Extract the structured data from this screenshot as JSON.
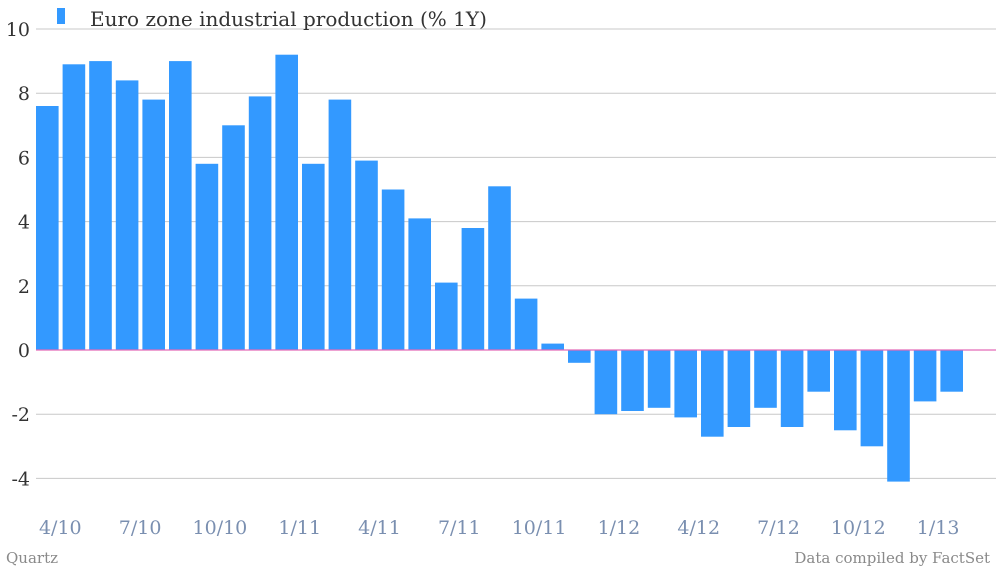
{
  "colors": {
    "bar": "#3399ff",
    "grid": "#c8c8c8",
    "zero_line": "#e36ab8"
  },
  "footer": {
    "left": "Quartz",
    "right": "Data compiled by FactSet"
  },
  "chart_data": {
    "type": "bar",
    "title": "",
    "xlabel": "",
    "ylabel": "",
    "ylim": [
      -5,
      10
    ],
    "yticks": [
      10,
      8,
      6,
      4,
      2,
      0,
      -2,
      -4
    ],
    "grid": true,
    "legend_position": "top-left",
    "x_tick_labels": [
      "4/10",
      "7/10",
      "10/10",
      "1/11",
      "4/11",
      "7/11",
      "10/11",
      "1/12",
      "4/12",
      "7/12",
      "10/12",
      "1/13"
    ],
    "categories": [
      "4/10",
      "5/10",
      "6/10",
      "7/10",
      "8/10",
      "9/10",
      "10/10",
      "11/10",
      "12/10",
      "1/11",
      "2/11",
      "3/11",
      "4/11",
      "5/11",
      "6/11",
      "7/11",
      "8/11",
      "9/11",
      "10/11",
      "11/11",
      "12/11",
      "1/12",
      "2/12",
      "3/12",
      "4/12",
      "5/12",
      "6/12",
      "7/12",
      "8/12",
      "9/12",
      "10/12",
      "11/12",
      "12/12",
      "1/13",
      "2/13"
    ],
    "series": [
      {
        "name": "Euro zone industrial production (% 1Y)",
        "values": [
          7.6,
          8.9,
          9.0,
          8.4,
          7.8,
          9.0,
          5.8,
          7.0,
          7.9,
          9.2,
          5.8,
          7.8,
          5.9,
          5.0,
          4.1,
          2.1,
          3.8,
          5.1,
          1.6,
          0.2,
          -0.4,
          -2.0,
          -1.9,
          -1.8,
          -2.1,
          -2.7,
          -2.4,
          -1.8,
          -2.4,
          -1.3,
          -2.5,
          -3.0,
          -4.1,
          -1.6,
          -1.3
        ]
      }
    ]
  }
}
